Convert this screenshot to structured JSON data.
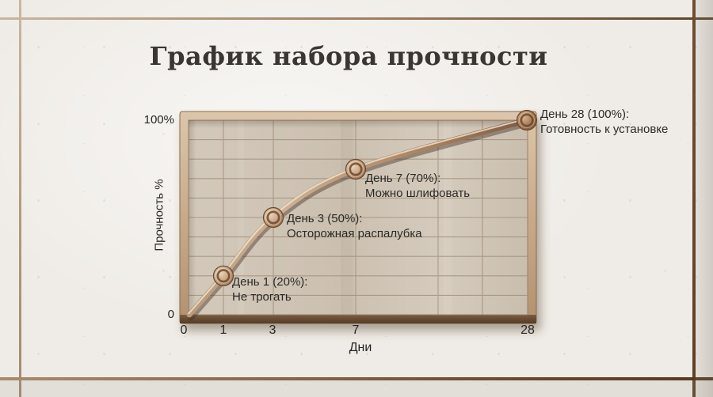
{
  "page": {
    "background_color": "#efece7"
  },
  "title": "График набора прочности",
  "chart_data": {
    "type": "line",
    "title": "График набора прочности",
    "xlabel": "Дни",
    "ylabel": "Прочность %",
    "x": [
      0,
      1,
      3,
      7,
      28
    ],
    "values": [
      0,
      20,
      50,
      70,
      100
    ],
    "x_tick_labels": [
      "0",
      "1",
      "3",
      "7",
      "28"
    ],
    "y_tick_labels": {
      "bottom": "0",
      "top": "100%"
    },
    "ylim": [
      0,
      100
    ],
    "grid": true,
    "legend": false,
    "points": [
      {
        "day": 1,
        "percent": 20,
        "label_title": "День 1 (20%):",
        "label_note": "Не трогать"
      },
      {
        "day": 3,
        "percent": 50,
        "label_title": "День 3 (50%):",
        "label_note": "Осторожная распалубка"
      },
      {
        "day": 7,
        "percent": 70,
        "label_title": "День 7 (70%):",
        "label_note": "Можно шлифовать"
      },
      {
        "day": 28,
        "percent": 100,
        "label_title": "День 28 (100%):",
        "label_note": "Готовность к установке"
      }
    ],
    "colors": {
      "curve": "#b9946f",
      "knob": "#b08457",
      "plot_background": "#cfc4b5",
      "frame": "#c4a384",
      "frame_bottom": "#65492f",
      "grid_line": "#9c8a74",
      "text": "#2b2a27",
      "title_text": "#3a3733",
      "wall": "#efece7"
    }
  }
}
